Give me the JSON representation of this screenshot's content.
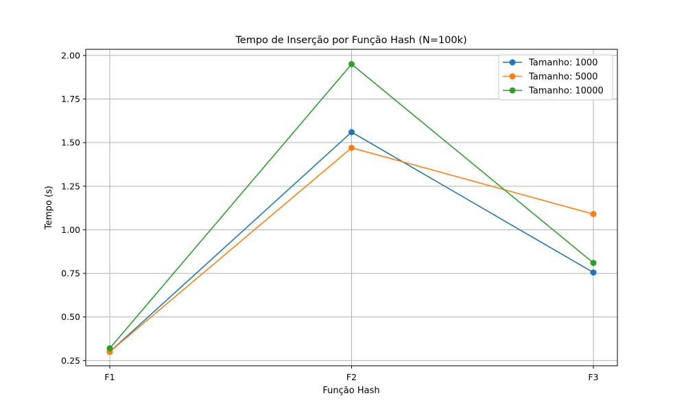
{
  "chart_data": {
    "type": "line",
    "title": "Tempo de Inserção por Função Hash (N=100k)",
    "xlabel": "Função Hash",
    "ylabel": "Tempo (s)",
    "categories": [
      "F1",
      "F2",
      "F3"
    ],
    "ylim": [
      0.22,
      2.035
    ],
    "yticks": [
      0.25,
      0.5,
      0.75,
      1.0,
      1.25,
      1.5,
      1.75,
      2.0
    ],
    "grid": true,
    "legend_position": "top-right",
    "series": [
      {
        "name": "Tamanho: 1000",
        "color": "#1f77b4",
        "values": [
          0.3,
          1.56,
          0.755
        ]
      },
      {
        "name": "Tamanho: 5000",
        "color": "#ff7f0e",
        "values": [
          0.3,
          1.47,
          1.09
        ]
      },
      {
        "name": "Tamanho: 10000",
        "color": "#2ca02c",
        "values": [
          0.32,
          1.95,
          0.81
        ]
      }
    ]
  }
}
